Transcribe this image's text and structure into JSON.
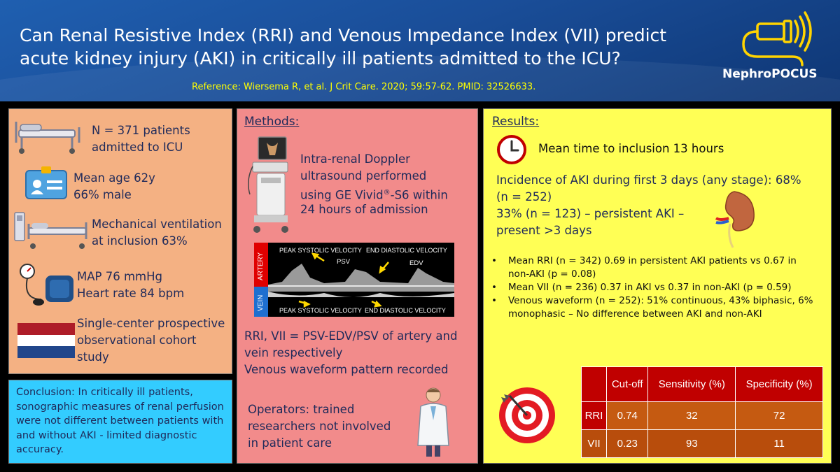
{
  "header": {
    "title": "Can Renal Resistive Index (RRI) and Venous Impedance Index (VII) predict acute kidney injury (AKI) in critically ill patients admitted to the ICU?",
    "reference": "Reference: Wiersema R, et al. J Crit Care. 2020; 59:57-62. PMID: 32526633.",
    "logo_text": "NephroPOCUS"
  },
  "patients": {
    "n_line1": "N = 371 patients",
    "n_line2": "admitted to ICU",
    "age_line1": "Mean age 62y",
    "age_line2": "66% male",
    "vent_line1": "Mechanical ventilation",
    "vent_line2": "at inclusion 63%",
    "map_line1": "MAP 76 mmHg",
    "map_line2": "Heart rate 84 bpm",
    "study_line1": "Single-center prospective",
    "study_line2": "observational cohort",
    "study_line3": "study"
  },
  "conclusion": {
    "text": "Conclusion: In critically ill patients, sonographic measures of renal perfusion were not different between patients with and without AKI - limited diagnostic accuracy."
  },
  "methods": {
    "heading": "Methods:",
    "doppler_line1": "Intra-renal Doppler",
    "doppler_line2": "ultrasound performed",
    "doppler_line3_pre": "using GE Vivid",
    "doppler_line3_sup": "®",
    "doppler_line3_post": "-S6 within",
    "doppler_line4": "24 hours of admission",
    "waveform": {
      "artery_label": "ARTERY",
      "vein_label": "VEIN",
      "psv_top": "PEAK SYSTOLIC VELOCITY",
      "edv_top": "END DIASTOLIC VELOCITY",
      "psv_abbr": "PSV",
      "edv_abbr": "EDV",
      "psv_bottom": "PEAK SYSTOLIC VELOCITY",
      "edv_bottom": "END DIASTOLIC VELOCITY"
    },
    "formula_line1": "RRI, VII = PSV-EDV/PSV of artery and",
    "formula_line2": "vein respectively",
    "formula_line3": "Venous waveform pattern recorded",
    "operators_line1": "Operators: trained",
    "operators_line2": "researchers not involved",
    "operators_line3": "in patient care"
  },
  "results": {
    "heading": "Results:",
    "time": "Mean time to inclusion 13 hours",
    "aki_line1": "Incidence of AKI during first 3 days (any stage): 68%",
    "aki_line2": "(n = 252)",
    "aki_line3": "33% (n = 123) – persistent AKI –",
    "aki_line4": "present >3 days",
    "bullets": [
      "Mean RRI (n = 342) 0.69 in persistent AKI patients vs 0.67 in non-AKI (p = 0.08)",
      "Mean VII (n = 236) 0.37 in AKI vs 0.37 in non-AKI (p = 0.59)",
      "Venous waveform (n = 252): 51% continuous, 43% biphasic, 6% monophasic – No difference between AKI and non-AKI"
    ],
    "table": {
      "headers": [
        "",
        "Cut-off",
        "Sensitivity (%)",
        "Specificity (%)"
      ],
      "rows": [
        {
          "label": "RRI",
          "cutoff": "0.74",
          "sensitivity": "32",
          "specificity": "72"
        },
        {
          "label": "VII",
          "cutoff": "0.23",
          "sensitivity": "93",
          "specificity": "11"
        }
      ]
    }
  },
  "colors": {
    "header_blue": "#1a4e99",
    "patients_panel": "#f4b183",
    "methods_panel": "#f28b8b",
    "results_panel": "#ffff55",
    "conclusion_panel": "#33ccff",
    "table_header": "#c00000",
    "table_cell": "#c55a11"
  },
  "icons": [
    "ultrasound-probe-logo-icon",
    "hospital-bed-icon",
    "id-badge-icon",
    "ventilator-bed-icon",
    "sphygmomanometer-icon",
    "netherlands-flag-icon",
    "ultrasound-machine-icon",
    "doctor-icon",
    "clock-icon",
    "kidney-icon",
    "target-icon"
  ]
}
